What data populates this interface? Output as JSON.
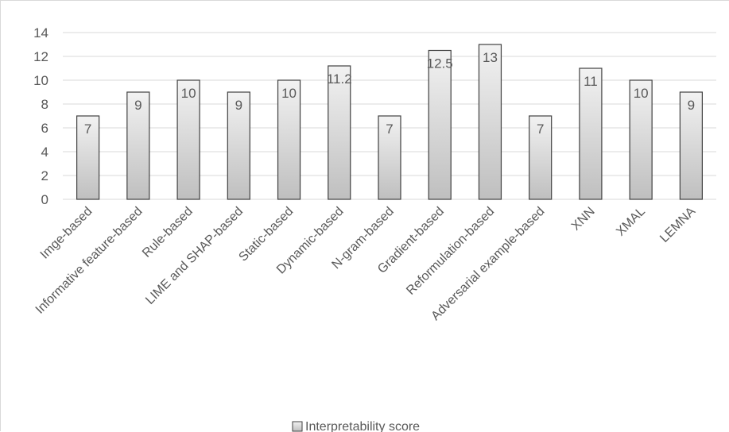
{
  "chart_data": {
    "type": "bar",
    "categories": [
      "Imge-based",
      "Informative feature-based",
      "Rule-based",
      "LIME and SHAP-based",
      "Static-based",
      "Dynamic-based",
      "N-gram-based",
      "Gradient-based",
      "Reformulation-based",
      "Adversarial example-based",
      "XNN",
      "XMAL",
      "LEMNA"
    ],
    "series": [
      {
        "name": "Interpretability score",
        "values": [
          7,
          9,
          10,
          9,
          10,
          11.2,
          7,
          12.5,
          13,
          7,
          11,
          10,
          9
        ]
      }
    ],
    "data_labels": [
      "7",
      "9",
      "10",
      "9",
      "10",
      "11.2",
      "7",
      "12.5",
      "13",
      "7",
      "11",
      "10",
      "9"
    ],
    "ylim": [
      0,
      14
    ],
    "yticks": [
      0,
      2,
      4,
      6,
      8,
      10,
      12,
      14
    ],
    "grid": true,
    "legend": "bottom",
    "colors": {
      "bar_top": "#f2f2f2",
      "bar_bottom": "#bfbfbf",
      "bar_edge": "#404040",
      "grid": "#d9d9d9",
      "text": "#595959"
    }
  }
}
